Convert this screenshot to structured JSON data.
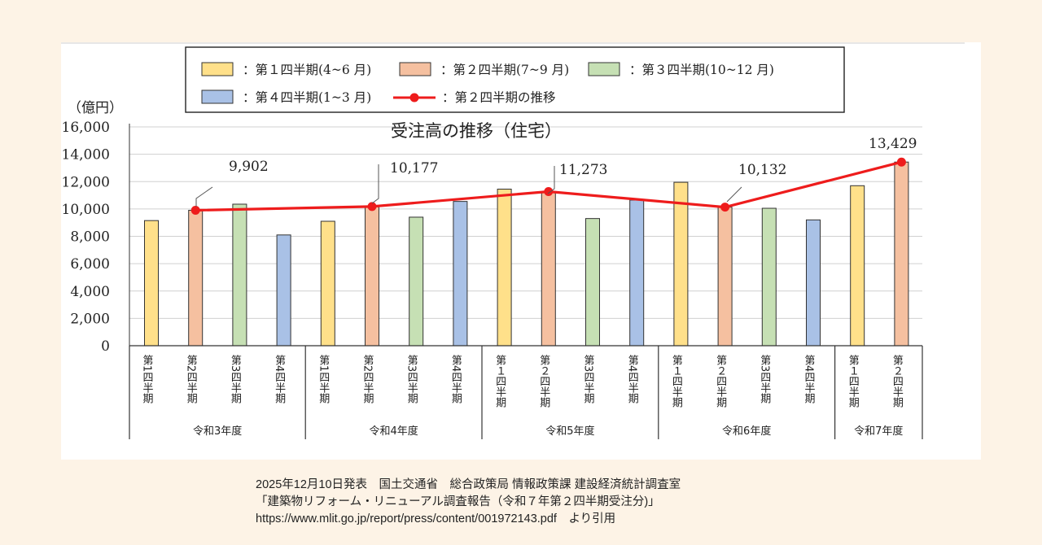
{
  "chart_data": {
    "type": "bar",
    "title": "受注高の推移（住宅）",
    "ylabel": "（億円）",
    "ylim": [
      0,
      16000
    ],
    "yticks": [
      "0",
      "2,000",
      "4,000",
      "6,000",
      "8,000",
      "10,000",
      "12,000",
      "14,000",
      "16,000"
    ],
    "grid": true,
    "legend_position": "top",
    "legend": [
      {
        "key": "q1",
        "label": "：第１四半期(4~6 月)",
        "color": "#ffe08a"
      },
      {
        "key": "q2",
        "label": "：第２四半期(7~9 月)",
        "color": "#f5c0a0"
      },
      {
        "key": "q3",
        "label": "：第３四半期(10~12 月)",
        "color": "#c6e0b4"
      },
      {
        "key": "q4",
        "label": "：第４四半期(1~3 月)",
        "color": "#a9c1e6"
      },
      {
        "key": "trend",
        "label": "：第２四半期の推移",
        "color": "#ee1c1c"
      }
    ],
    "groups": [
      {
        "label": "令和3年度",
        "bars": [
          {
            "category": "第1四半期",
            "quarter": "q1",
            "value": 9150
          },
          {
            "category": "第2四半期",
            "quarter": "q2",
            "value": 9902
          },
          {
            "category": "第3四半期",
            "quarter": "q3",
            "value": 10350
          },
          {
            "category": "第4四半期",
            "quarter": "q4",
            "value": 8100
          }
        ]
      },
      {
        "label": "令和4年度",
        "bars": [
          {
            "category": "第1四半期",
            "quarter": "q1",
            "value": 9100
          },
          {
            "category": "第2四半期",
            "quarter": "q2",
            "value": 10177
          },
          {
            "category": "第3四半期",
            "quarter": "q3",
            "value": 9400
          },
          {
            "category": "第4四半期",
            "quarter": "q4",
            "value": 10550
          }
        ]
      },
      {
        "label": "令和5年度",
        "bars": [
          {
            "category": "第１四半期",
            "quarter": "q1",
            "value": 11450
          },
          {
            "category": "第２四半期",
            "quarter": "q2",
            "value": 11273
          },
          {
            "category": "第3四半期",
            "quarter": "q3",
            "value": 9300
          },
          {
            "category": "第4四半期",
            "quarter": "q4",
            "value": 10650
          }
        ]
      },
      {
        "label": "令和6年度",
        "bars": [
          {
            "category": "第１四半期",
            "quarter": "q1",
            "value": 11950
          },
          {
            "category": "第２四半期",
            "quarter": "q2",
            "value": 10132
          },
          {
            "category": "第3四半期",
            "quarter": "q3",
            "value": 10050
          },
          {
            "category": "第4四半期",
            "quarter": "q4",
            "value": 9200
          }
        ]
      },
      {
        "label": "令和7年度",
        "bars": [
          {
            "category": "第１四半期",
            "quarter": "q1",
            "value": 11700
          },
          {
            "category": "第２四半期",
            "quarter": "q2",
            "value": 13429
          }
        ]
      }
    ],
    "trend_series": {
      "values": [
        9902,
        10177,
        11273,
        10132,
        13429
      ],
      "labels": [
        "9,902",
        "10,177",
        "11,273",
        "10,132",
        "13,429"
      ]
    }
  },
  "source_note": {
    "line1": "2025年12月10日発表　国土交通省　総合政策局 情報政策課 建設経済統計調査室",
    "line2": "「建築物リフォーム・リニューアル調査報告（令和７年第２四半期受注分)」",
    "line3": "https://www.mlit.go.jp/report/press/content/001972143.pdf　より引用"
  }
}
